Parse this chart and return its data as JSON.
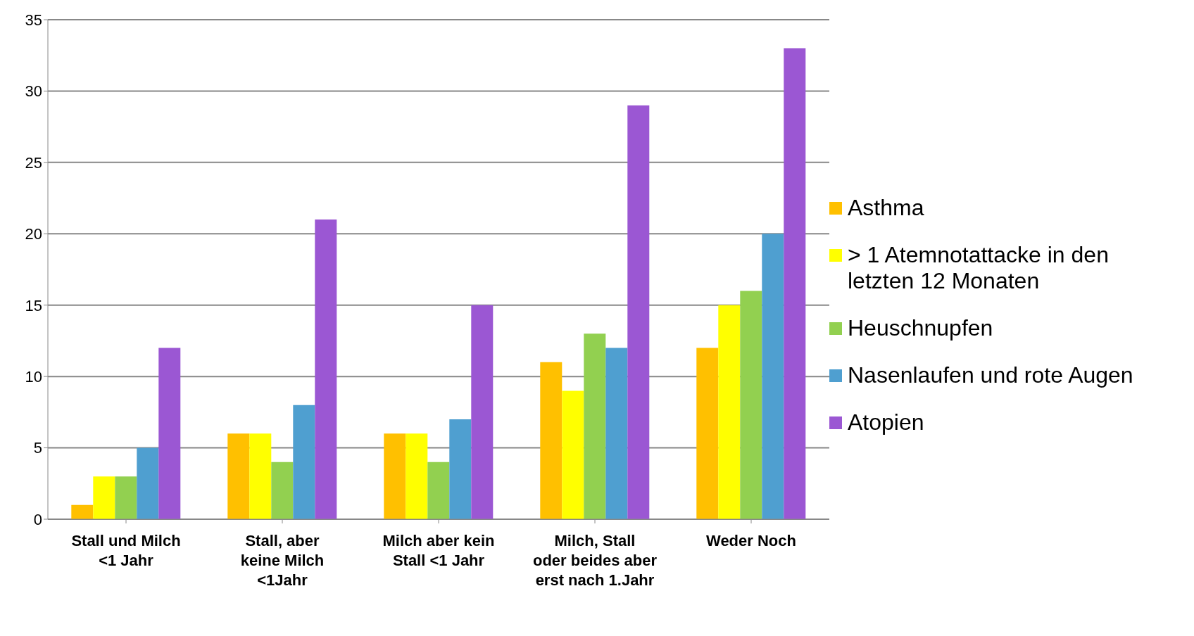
{
  "chart_data": {
    "type": "bar",
    "categories": [
      "Stall und Milch <1 Jahr",
      "Stall, aber keine Milch <1Jahr",
      "Milch aber kein Stall <1 Jahr",
      "Milch, Stall oder beides aber erst nach 1.Jahr",
      "Weder Noch"
    ],
    "series": [
      {
        "name": "Asthma",
        "color": "#ffc000",
        "values": [
          1,
          6,
          6,
          11,
          12
        ]
      },
      {
        "name": "> 1 Atemnotattacke in den letzten 12 Monaten",
        "color": "#ffff00",
        "values": [
          3,
          6,
          6,
          9,
          15
        ]
      },
      {
        "name": "Heuschnupfen",
        "color": "#92d050",
        "values": [
          3,
          4,
          4,
          13,
          16
        ]
      },
      {
        "name": "Nasenlaufen und rote Augen",
        "color": "#4f9fd0",
        "values": [
          5,
          8,
          7,
          12,
          20
        ]
      },
      {
        "name": "Atopien",
        "color": "#9b57d3",
        "values": [
          12,
          21,
          15,
          29,
          33
        ]
      }
    ],
    "ylim": [
      0,
      35
    ],
    "yticks": [
      0,
      5,
      10,
      15,
      20,
      25,
      30,
      35
    ],
    "grid": "y",
    "legend": "right"
  }
}
